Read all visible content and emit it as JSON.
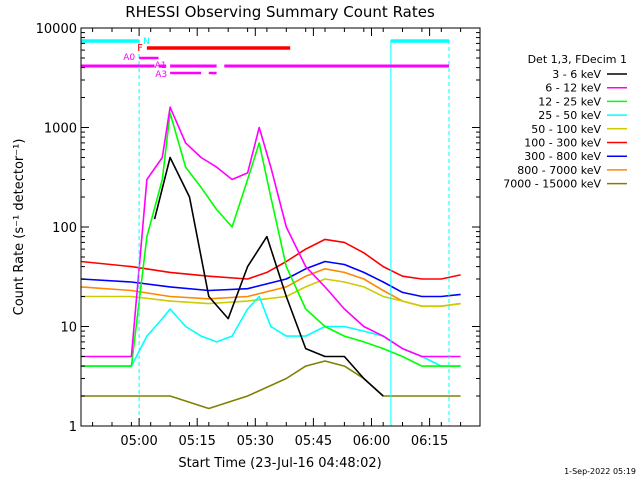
{
  "chart_data": {
    "type": "line",
    "title": "RHESSI Observing Summary Count Rates",
    "xlabel": "Start Time (23-Jul-16 04:48:02)",
    "ylabel": "Count Rate (s⁻¹ detector⁻¹)",
    "y_scale": "log",
    "ylim": [
      1,
      10000
    ],
    "xlim_minutes": [
      -3,
      100
    ],
    "x_ticks": [
      {
        "label": "05:00",
        "value": 12
      },
      {
        "label": "05:15",
        "value": 27
      },
      {
        "label": "05:30",
        "value": 42
      },
      {
        "label": "05:45",
        "value": 57
      },
      {
        "label": "06:00",
        "value": 72
      },
      {
        "label": "06:15",
        "value": 87
      }
    ],
    "y_ticks": [
      {
        "label": "1",
        "value": 1
      },
      {
        "label": "10",
        "value": 10
      },
      {
        "label": "100",
        "value": 100
      },
      {
        "label": "1000",
        "value": 1000
      },
      {
        "label": "10000",
        "value": 10000
      }
    ],
    "legend_title": "Det 1,3, FDecim 1",
    "legend_position": "right",
    "series": [
      {
        "name": "3 - 6 keV",
        "color": "#000000",
        "x": [
          16,
          20,
          25,
          30,
          35,
          40,
          45,
          50,
          55,
          60,
          65,
          70,
          75
        ],
        "values": [
          120,
          500,
          200,
          20,
          12,
          40,
          80,
          20,
          6,
          5,
          5,
          3,
          2
        ]
      },
      {
        "name": "6 - 12 keV",
        "color": "#ff00ff",
        "x": [
          -3,
          10,
          14,
          18,
          20,
          24,
          28,
          32,
          36,
          40,
          43,
          46,
          50,
          55,
          60,
          65,
          70,
          75,
          80,
          85,
          90,
          95
        ],
        "values": [
          5,
          5,
          300,
          500,
          1600,
          700,
          500,
          400,
          300,
          350,
          1000,
          400,
          100,
          40,
          25,
          15,
          10,
          8,
          6,
          5,
          5,
          5
        ]
      },
      {
        "name": "12 - 25 keV",
        "color": "#00ff00",
        "x": [
          -3,
          10,
          14,
          18,
          20,
          24,
          28,
          32,
          36,
          40,
          43,
          46,
          50,
          55,
          60,
          65,
          70,
          75,
          80,
          85,
          90,
          95
        ],
        "values": [
          4,
          4,
          80,
          300,
          1400,
          400,
          250,
          150,
          100,
          300,
          700,
          200,
          40,
          15,
          10,
          8,
          7,
          6,
          5,
          4,
          4,
          4
        ]
      },
      {
        "name": "25 - 50 keV",
        "color": "#00ffff",
        "x": [
          -3,
          10,
          14,
          18,
          20,
          24,
          28,
          32,
          36,
          40,
          43,
          46,
          50,
          55,
          60,
          65,
          70,
          75,
          80,
          85,
          90,
          95
        ],
        "values": [
          4,
          4,
          8,
          12,
          15,
          10,
          8,
          7,
          8,
          15,
          20,
          10,
          8,
          8,
          10,
          10,
          9,
          8,
          6,
          5,
          4,
          4
        ]
      },
      {
        "name": "50 - 100 keV",
        "color": "#cccc00",
        "x": [
          -3,
          10,
          20,
          30,
          40,
          50,
          55,
          60,
          65,
          70,
          75,
          80,
          85,
          90,
          95
        ],
        "values": [
          20,
          20,
          18,
          17,
          18,
          20,
          25,
          30,
          28,
          25,
          20,
          18,
          16,
          16,
          17
        ]
      },
      {
        "name": "100 - 300 keV",
        "color": "#ff0000",
        "x": [
          -3,
          10,
          20,
          30,
          40,
          45,
          50,
          55,
          60,
          65,
          70,
          75,
          80,
          85,
          90,
          95
        ],
        "values": [
          45,
          40,
          35,
          32,
          30,
          35,
          45,
          60,
          75,
          70,
          55,
          40,
          32,
          30,
          30,
          33
        ]
      },
      {
        "name": "300 - 800 keV",
        "color": "#0000ff",
        "x": [
          -3,
          10,
          20,
          30,
          40,
          50,
          55,
          60,
          65,
          70,
          75,
          80,
          85,
          90,
          95
        ],
        "values": [
          30,
          28,
          25,
          23,
          24,
          30,
          38,
          45,
          42,
          35,
          28,
          22,
          20,
          20,
          21
        ]
      },
      {
        "name": "800 - 7000 keV",
        "color": "#ff8800",
        "x": [
          -3,
          10,
          20,
          30,
          40,
          50,
          55,
          60,
          65,
          70,
          75,
          80,
          85,
          90,
          95
        ],
        "values": [
          25,
          23,
          20,
          19,
          20,
          25,
          32,
          38,
          35,
          30,
          23,
          18,
          16,
          16,
          17
        ]
      },
      {
        "name": "7000 - 15000 keV",
        "color": "#808000",
        "x": [
          -3,
          10,
          20,
          30,
          40,
          50,
          55,
          60,
          65,
          70,
          75,
          80,
          85,
          90,
          95
        ],
        "values": [
          2,
          2,
          2,
          1.5,
          2,
          3,
          4,
          4.5,
          4,
          3,
          2,
          2,
          2,
          2,
          2
        ]
      }
    ],
    "flag_bars": [
      {
        "label": "N",
        "color": "#00ffff",
        "segments": [
          [
            -3,
            12
          ],
          [
            77,
            92
          ]
        ]
      },
      {
        "label": "F",
        "color": "#ff0000",
        "segments": [
          [
            14,
            51
          ]
        ]
      },
      {
        "label": "A0",
        "color": "#ff00ff",
        "segments": [
          [
            12,
            17
          ]
        ]
      },
      {
        "label": "A1",
        "color": "#ff00ff",
        "segments": [
          [
            -3,
            12
          ],
          [
            12,
            16
          ],
          [
            17,
            19
          ],
          [
            20,
            32
          ],
          [
            34,
            92
          ]
        ]
      },
      {
        "label": "A3",
        "color": "#ff00ff",
        "segments": [
          [
            20,
            28
          ],
          [
            30,
            32
          ]
        ]
      }
    ],
    "saa_markers_minutes": [
      12,
      77,
      92
    ]
  },
  "footer": {
    "date": "1-Sep-2022 05:19"
  }
}
